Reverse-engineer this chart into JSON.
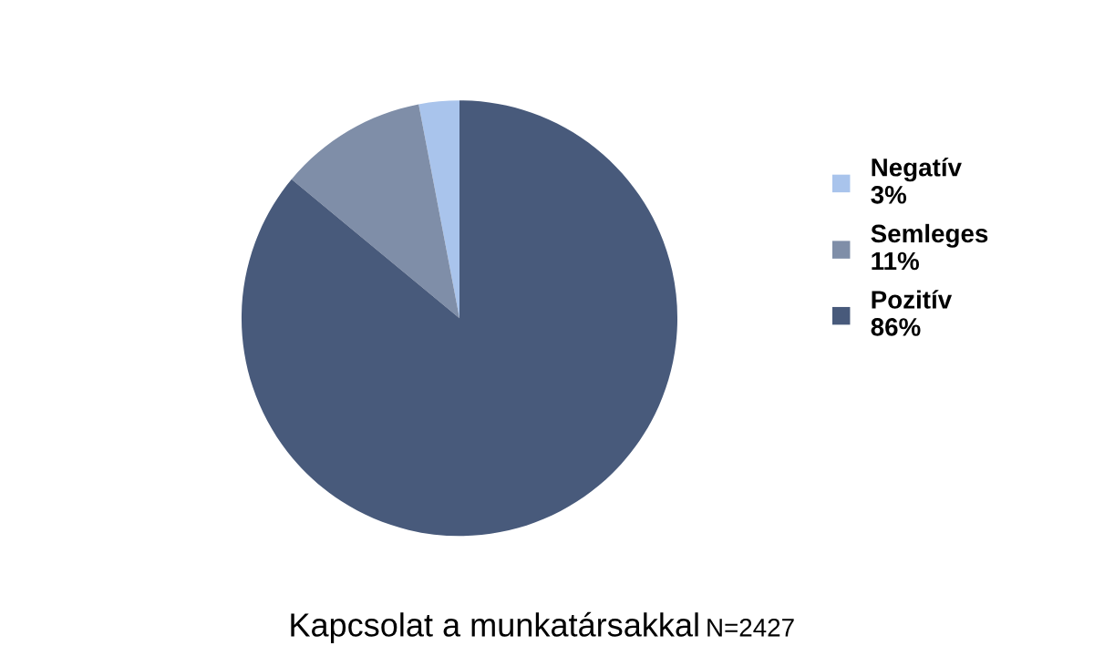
{
  "chart_data": {
    "type": "pie",
    "title": "Kapcsolat a munkatársakkal",
    "subtitle": "N=2427",
    "categories": [
      "Negatív",
      "Semleges",
      "Pozitív"
    ],
    "values": [
      3,
      11,
      86
    ],
    "value_labels": [
      "3%",
      "11%",
      "86%"
    ],
    "colors": [
      "#a9c4ec",
      "#7f8ea8",
      "#485a7b"
    ],
    "legend": "right"
  }
}
